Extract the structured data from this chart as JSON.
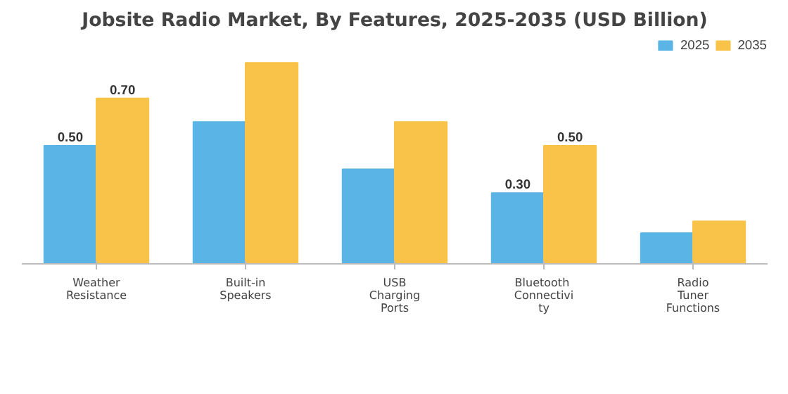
{
  "chart_data": {
    "type": "bar",
    "title": "Jobsite Radio Market, By Features, 2025-2035 (USD Billion)",
    "categories": [
      "Weather Resistance",
      "Built-in Speakers",
      "USB Charging Ports",
      "Bluetooth Connectivity",
      "Radio Tuner Functions"
    ],
    "series": [
      {
        "name": "2025",
        "color": "#5ab4e5",
        "values": [
          0.5,
          0.6,
          0.4,
          0.3,
          0.13
        ],
        "value_labels": [
          "0.50",
          null,
          null,
          "0.30",
          null
        ]
      },
      {
        "name": "2035",
        "color": "#f9c34a",
        "values": [
          0.7,
          0.85,
          0.6,
          0.5,
          0.18
        ],
        "value_labels": [
          "0.70",
          null,
          null,
          "0.50",
          null
        ]
      }
    ],
    "legend": "top right"
  }
}
